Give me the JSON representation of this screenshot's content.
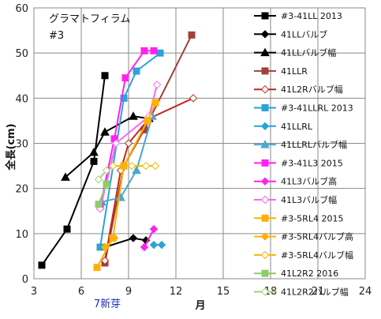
{
  "chart_data": {
    "type": "line",
    "annotation_title": "グラマトフィラム",
    "annotation_subtitle": "#3",
    "xlabel": "月",
    "ylabel": "全長(cm)",
    "x_annotation": "7新芽",
    "xlim": [
      3,
      24
    ],
    "ylim": [
      0,
      60
    ],
    "xticks": [
      3,
      6,
      9,
      12,
      15,
      18,
      21,
      24
    ],
    "yticks": [
      0,
      10,
      20,
      30,
      40,
      50,
      60
    ],
    "grid": true,
    "legend_position": "right",
    "series": [
      {
        "name": "#3-41LL 2013",
        "color": "#000000",
        "marker": "square",
        "filled": true,
        "points": [
          [
            3.5,
            3
          ],
          [
            5.1,
            11
          ],
          [
            6.8,
            26
          ],
          [
            7.5,
            45
          ]
        ]
      },
      {
        "name": "41LLバルブ",
        "color": "#000000",
        "marker": "diamond",
        "filled": true,
        "points": [
          [
            7.5,
            7
          ],
          [
            9.3,
            9
          ],
          [
            10.1,
            8.5
          ]
        ]
      },
      {
        "name": "41LLバルブ幅",
        "color": "#000000",
        "marker": "triangle",
        "filled": true,
        "points": [
          [
            5.0,
            22.5
          ],
          [
            6.8,
            28
          ],
          [
            7.5,
            32.5
          ],
          [
            9.3,
            36
          ],
          [
            10.3,
            35.5
          ]
        ]
      },
      {
        "name": "41LLR",
        "color": "#a0413a",
        "marker": "square",
        "filled": true,
        "points": [
          [
            7.5,
            3.5
          ],
          [
            8.7,
            25
          ],
          [
            10.0,
            33
          ],
          [
            13.0,
            54
          ]
        ]
      },
      {
        "name": "41L2Rバルブ幅",
        "color": "#c0261c",
        "marker": "diamond",
        "filled": false,
        "points": [
          [
            7.5,
            4
          ],
          [
            8.5,
            24
          ],
          [
            9.0,
            30
          ],
          [
            10.3,
            35.5
          ],
          [
            13.1,
            40
          ]
        ]
      },
      {
        "name": "#3-41LLRL 2013",
        "color": "#29a3d8",
        "marker": "square",
        "filled": true,
        "points": [
          [
            7.2,
            7
          ],
          [
            8.7,
            40
          ],
          [
            9.5,
            46
          ],
          [
            11.0,
            50
          ]
        ]
      },
      {
        "name": "41LLRL",
        "color": "#29a3d8",
        "marker": "diamond",
        "filled": true,
        "points": [
          [
            10.6,
            7.5
          ],
          [
            11.1,
            7.5
          ]
        ]
      },
      {
        "name": "41LLRLバルブ幅",
        "color": "#4aa8d0",
        "marker": "triangle",
        "filled": true,
        "points": [
          [
            7.3,
            17
          ],
          [
            8.5,
            18
          ],
          [
            9.5,
            24
          ],
          [
            10.5,
            36
          ]
        ]
      },
      {
        "name": "#3-41L3 2015",
        "color": "#ff22ee",
        "marker": "square",
        "filled": true,
        "points": [
          [
            7.2,
            16
          ],
          [
            8.1,
            31
          ],
          [
            8.8,
            44.5
          ],
          [
            10.0,
            50.5
          ],
          [
            10.6,
            50.5
          ]
        ]
      },
      {
        "name": "41L3バルブ高",
        "color": "#ff22ee",
        "marker": "diamond",
        "filled": true,
        "points": [
          [
            10.0,
            7
          ],
          [
            10.6,
            11
          ]
        ]
      },
      {
        "name": "41L3バルブ幅",
        "color": "#ff66f0",
        "marker": "diamond",
        "filled": false,
        "points": [
          [
            7.2,
            15.5
          ],
          [
            8.2,
            30
          ],
          [
            10.3,
            36
          ],
          [
            10.8,
            43
          ]
        ]
      },
      {
        "name": "#3-5RL4 2015",
        "color": "#ffb000",
        "marker": "square",
        "filled": true,
        "points": [
          [
            7.0,
            2.5
          ],
          [
            8.0,
            9
          ],
          [
            8.7,
            25
          ],
          [
            10.2,
            35
          ],
          [
            10.7,
            39
          ]
        ]
      },
      {
        "name": "#3-5RL4バルブ高",
        "color": "#ffb000",
        "marker": "diamond",
        "filled": true,
        "points": [
          [
            7.5,
            7
          ],
          [
            8.1,
            9
          ]
        ]
      },
      {
        "name": "#3-5RL4バルブ幅",
        "color": "#f4b700",
        "marker": "diamond",
        "filled": false,
        "points": [
          [
            8.0,
            25
          ],
          [
            9.2,
            25
          ],
          [
            10.1,
            25
          ],
          [
            10.7,
            25
          ]
        ]
      },
      {
        "name": "41L2R2 2016",
        "color": "#8fcc6a",
        "marker": "square",
        "filled": true,
        "points": [
          [
            7.1,
            16.5
          ],
          [
            7.6,
            21
          ]
        ]
      },
      {
        "name": "41L2R2バルブ幅",
        "color": "#a3d07a",
        "marker": "diamond",
        "filled": false,
        "points": [
          [
            7.1,
            22
          ],
          [
            7.6,
            24
          ]
        ]
      }
    ]
  }
}
